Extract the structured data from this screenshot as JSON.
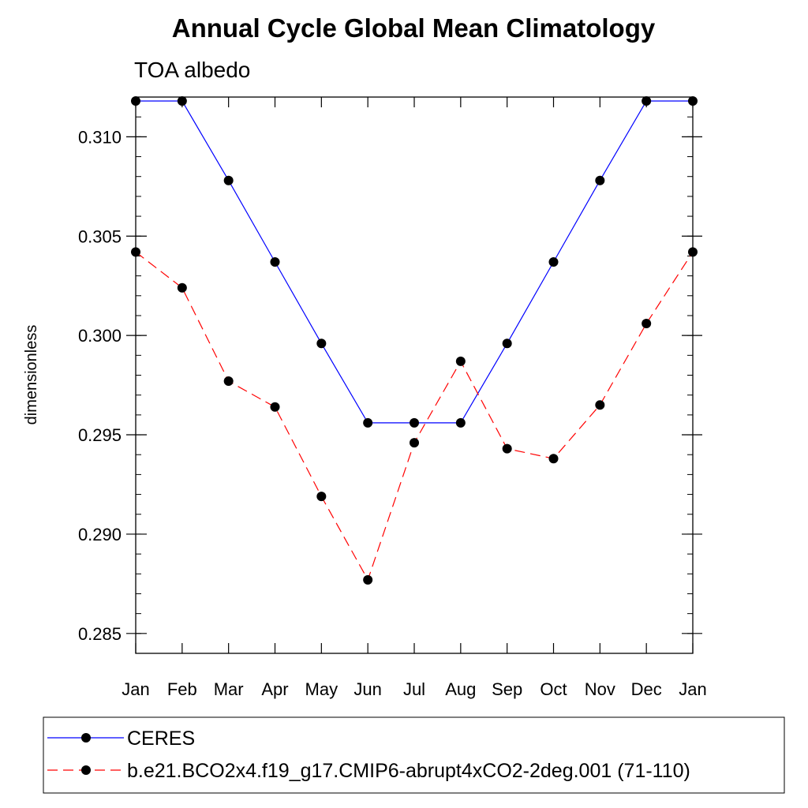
{
  "chart_data": {
    "type": "line",
    "title": "Annual Cycle Global Mean Climatology",
    "subtitle": "TOA albedo",
    "xlabel": "",
    "ylabel": "dimensionless",
    "categories": [
      "Jan",
      "Feb",
      "Mar",
      "Apr",
      "May",
      "Jun",
      "Jul",
      "Aug",
      "Sep",
      "Oct",
      "Nov",
      "Dec",
      "Jan"
    ],
    "ylim": [
      0.284,
      0.312
    ],
    "yticks": [
      0.285,
      0.29,
      0.295,
      0.3,
      0.305,
      0.31
    ],
    "ytick_labels": [
      "0.285",
      "0.290",
      "0.295",
      "0.300",
      "0.305",
      "0.310"
    ],
    "grid": false,
    "legend_position": "bottom",
    "series": [
      {
        "name": "CERES",
        "color": "#0000ff",
        "line_style": "solid",
        "marker": "filled-circle",
        "values": [
          0.3118,
          0.3118,
          0.3078,
          0.3037,
          0.2996,
          0.2956,
          0.2956,
          0.2956,
          0.2996,
          0.3037,
          0.3078,
          0.3118,
          0.3118
        ]
      },
      {
        "name": "b.e21.BCO2x4.f19_g17.CMIP6-abrupt4xCO2-2deg.001 (71-110)",
        "color": "#ff0000",
        "line_style": "dashed",
        "marker": "filled-circle",
        "values": [
          0.3042,
          0.3024,
          0.2977,
          0.2964,
          0.2919,
          0.2877,
          0.2946,
          0.2987,
          0.2943,
          0.2938,
          0.2965,
          0.3006,
          0.3042
        ]
      }
    ]
  }
}
